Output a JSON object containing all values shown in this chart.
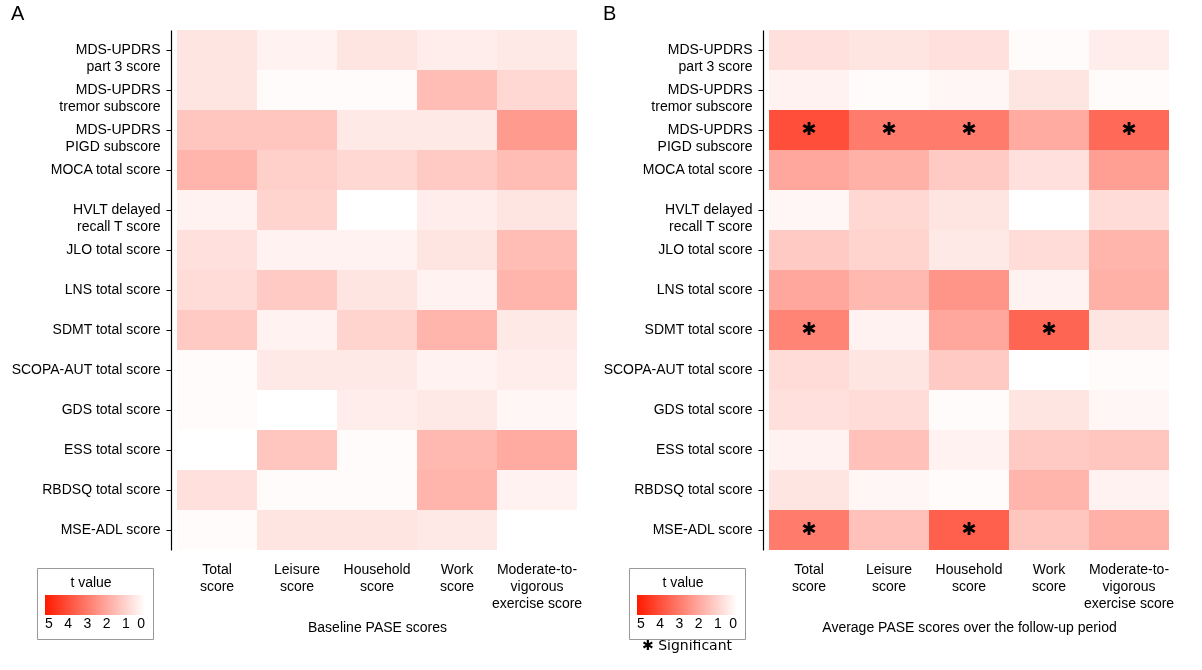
{
  "chart_data": [
    {
      "type": "heatmap",
      "title": "A",
      "xlabel": "Baseline PASE scores",
      "legend_title": "t value",
      "clim": [
        5.2,
        0
      ],
      "cticks": [
        5,
        4,
        3,
        2,
        1,
        0
      ],
      "categories": [
        "Total\nscore",
        "Leisure\nscore",
        "Household\nscore",
        "Work\nscore",
        "Moderate-to-\nvigorous\nexercise score"
      ],
      "y_categories": [
        "MDS-UPDRS\npart 3 score",
        "MDS-UPDRS\ntremor subscore",
        "MDS-UPDRS\nPIGD subscore",
        "MOCA total score",
        "HVLT delayed\nrecall T score",
        "JLO total score",
        "LNS total score",
        "SDMT total score",
        "SCOPA-AUT total score",
        "GDS total score",
        "ESS total score",
        "RBDSQ total score",
        "MSE-ADL score"
      ],
      "cells": [
        [
          0.6,
          0.3,
          0.6,
          0.4,
          0.5
        ],
        [
          0.6,
          0.1,
          0.1,
          1.5,
          0.9
        ],
        [
          1.3,
          1.3,
          0.5,
          0.5,
          2.3
        ],
        [
          1.7,
          1.1,
          0.9,
          1.2,
          1.5
        ],
        [
          0.3,
          1.0,
          0.0,
          0.4,
          0.6
        ],
        [
          0.7,
          0.3,
          0.3,
          0.6,
          1.5
        ],
        [
          0.8,
          1.2,
          0.6,
          0.3,
          1.7
        ],
        [
          1.2,
          0.3,
          1.0,
          1.7,
          0.5
        ],
        [
          0.1,
          0.5,
          0.5,
          0.3,
          0.4
        ],
        [
          0.1,
          0.0,
          0.4,
          0.5,
          0.2
        ],
        [
          0.0,
          1.3,
          0.1,
          1.6,
          1.9
        ],
        [
          0.7,
          0.1,
          0.1,
          1.7,
          0.3
        ],
        [
          0.1,
          0.6,
          0.6,
          0.5,
          0.0
        ]
      ]
    },
    {
      "type": "heatmap",
      "title": "B",
      "xlabel": "Average PASE scores over the follow-up period",
      "legend_title": "t value",
      "clim": [
        5.2,
        0
      ],
      "cticks": [
        5,
        4,
        3,
        2,
        1,
        0
      ],
      "categories": [
        "Total\nscore",
        "Leisure\nscore",
        "Household\nscore",
        "Work\nscore",
        "Moderate-to-\nvigorous\nexercise score"
      ],
      "y_categories": [
        "MDS-UPDRS\npart 3 score",
        "MDS-UPDRS\ntremor subscore",
        "MDS-UPDRS\nPIGD subscore",
        "MOCA total score",
        "HVLT delayed\nrecall T score",
        "JLO total score",
        "LNS total score",
        "SDMT total score",
        "SCOPA-AUT total score",
        "GDS total score",
        "ESS total score",
        "RBDSQ total score",
        "MSE-ADL score"
      ],
      "cells": [
        [
          0.7,
          0.6,
          0.7,
          0.1,
          0.4
        ],
        [
          0.3,
          0.1,
          0.2,
          0.6,
          0.1
        ],
        [
          4.0,
          3.0,
          3.0,
          1.9,
          3.4
        ],
        [
          2.0,
          1.8,
          1.2,
          0.7,
          2.2
        ],
        [
          0.2,
          0.9,
          0.6,
          0.0,
          0.8
        ],
        [
          1.2,
          1.0,
          0.5,
          0.8,
          1.7
        ],
        [
          2.0,
          1.6,
          2.4,
          0.3,
          1.8
        ],
        [
          2.8,
          0.3,
          2.0,
          3.5,
          0.6
        ],
        [
          0.8,
          0.6,
          1.2,
          0.0,
          0.1
        ],
        [
          0.7,
          0.8,
          0.1,
          0.6,
          0.2
        ],
        [
          0.3,
          1.4,
          0.3,
          1.2,
          1.3
        ],
        [
          0.6,
          0.2,
          0.1,
          1.7,
          0.3
        ],
        [
          3.0,
          1.4,
          3.6,
          1.3,
          1.8
        ]
      ],
      "cell_labels": [
        [
          null,
          null,
          null,
          null,
          null
        ],
        [
          null,
          null,
          null,
          null,
          null
        ],
        [
          "✱",
          "✱",
          "✱",
          null,
          "✱"
        ],
        [
          null,
          null,
          null,
          null,
          null
        ],
        [
          null,
          null,
          null,
          null,
          null
        ],
        [
          null,
          null,
          null,
          null,
          null
        ],
        [
          null,
          null,
          null,
          null,
          null
        ],
        [
          "✱",
          null,
          null,
          "✱",
          null
        ],
        [
          null,
          null,
          null,
          null,
          null
        ],
        [
          null,
          null,
          null,
          null,
          null
        ],
        [
          null,
          null,
          null,
          null,
          null
        ],
        [
          null,
          null,
          null,
          null,
          null
        ],
        [
          "✱",
          null,
          "✱",
          null,
          null
        ]
      ],
      "annotations": [
        "✱ Significant"
      ]
    }
  ]
}
